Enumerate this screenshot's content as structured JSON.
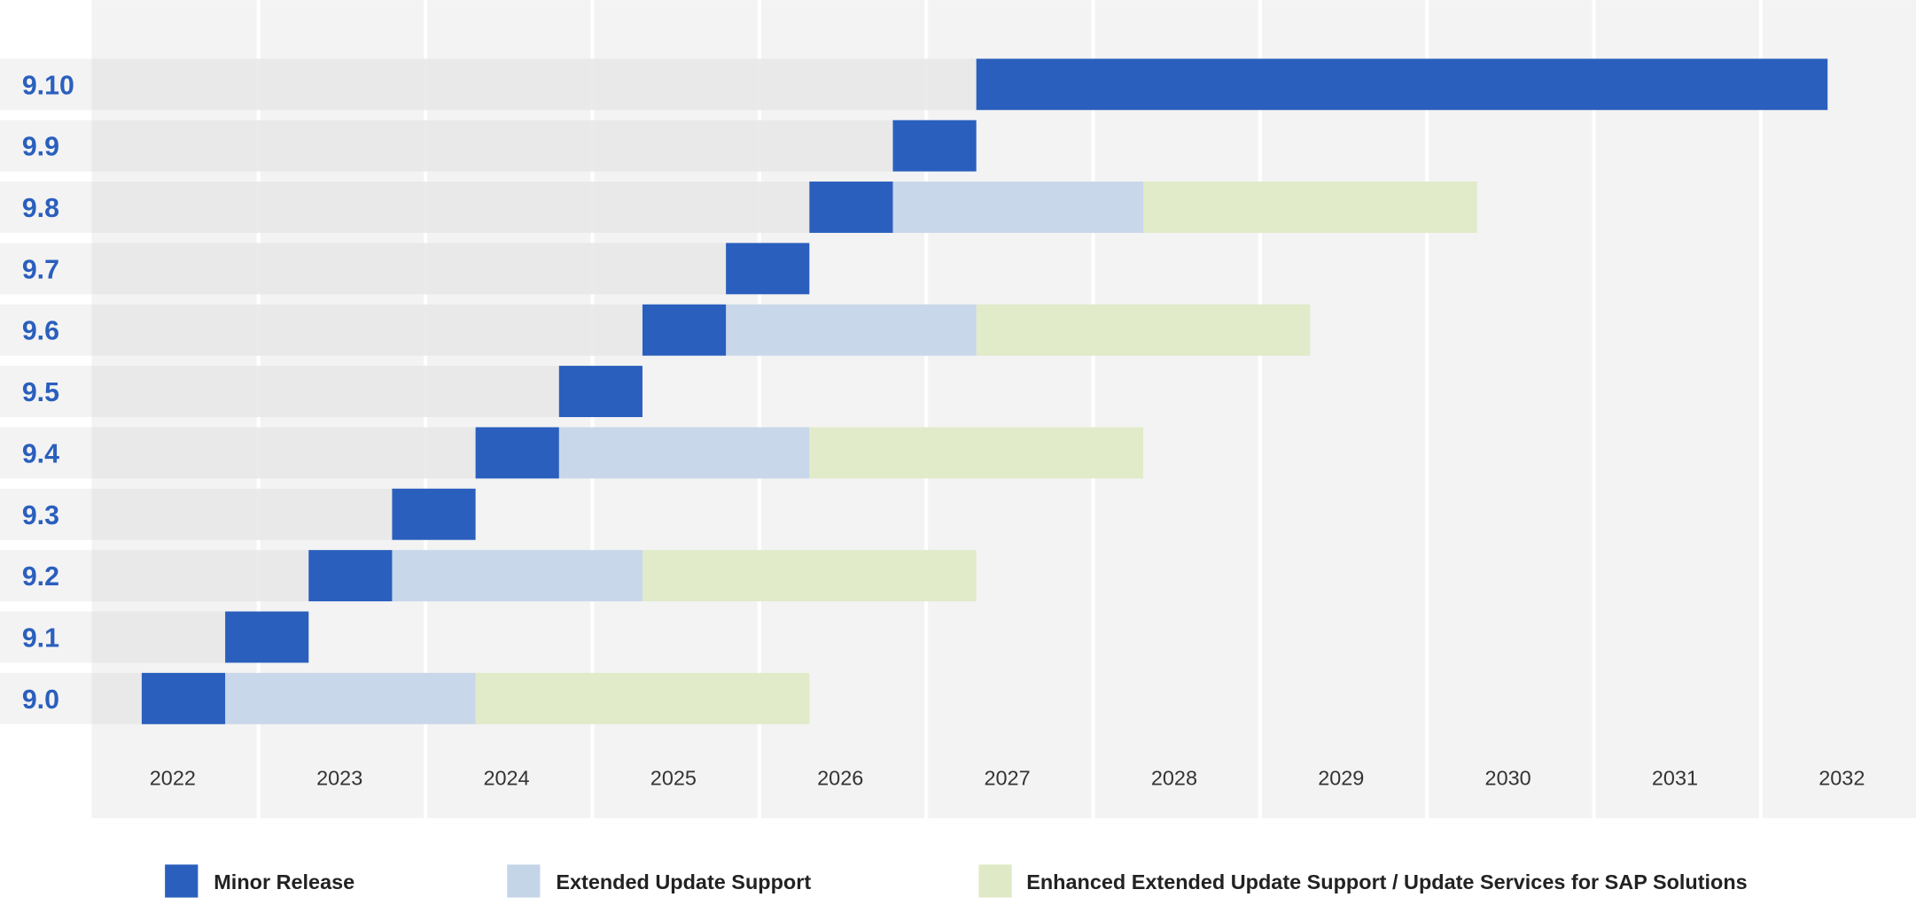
{
  "chart_data": {
    "type": "gantt",
    "title": "",
    "x_ticks": [
      "2022",
      "2023",
      "2024",
      "2025",
      "2026",
      "2027",
      "2028",
      "2029",
      "2030",
      "2031",
      "2032"
    ],
    "x_range": [
      2022,
      2033
    ],
    "grid": true,
    "legend_placement": "bottom",
    "colors": {
      "minor_release": "#2a5fbd",
      "extended_update_support": "#c5d5e8",
      "enhanced_extended_update_support": "#dfe9c6",
      "plot_background": "#f3f3f3",
      "row_background": "#e8e8e8",
      "row_label": "#2a5fbd"
    },
    "legend": [
      {
        "key": "minor_release",
        "label": "Minor Release"
      },
      {
        "key": "extended_update_support",
        "label": "Extended Update Support"
      },
      {
        "key": "enhanced_extended_update_support",
        "label": "Enhanced Extended Update Support / Update Services for SAP Solutions"
      }
    ],
    "releases": [
      {
        "version": "9.10",
        "minor_release": [
          2027.3,
          2032.4
        ]
      },
      {
        "version": "9.9",
        "minor_release": [
          2026.8,
          2027.3
        ]
      },
      {
        "version": "9.8",
        "minor_release": [
          2026.3,
          2026.8
        ],
        "extended_update_support": [
          2026.8,
          2028.3
        ],
        "enhanced_extended_update_support": [
          2028.3,
          2030.3
        ]
      },
      {
        "version": "9.7",
        "minor_release": [
          2025.8,
          2026.3
        ]
      },
      {
        "version": "9.6",
        "minor_release": [
          2025.3,
          2025.8
        ],
        "extended_update_support": [
          2025.8,
          2027.3
        ],
        "enhanced_extended_update_support": [
          2027.3,
          2029.3
        ]
      },
      {
        "version": "9.5",
        "minor_release": [
          2024.8,
          2025.3
        ]
      },
      {
        "version": "9.4",
        "minor_release": [
          2024.3,
          2024.8
        ],
        "extended_update_support": [
          2024.8,
          2026.3
        ],
        "enhanced_extended_update_support": [
          2026.3,
          2028.3
        ]
      },
      {
        "version": "9.3",
        "minor_release": [
          2023.8,
          2024.3
        ]
      },
      {
        "version": "9.2",
        "minor_release": [
          2023.3,
          2023.8
        ],
        "extended_update_support": [
          2023.8,
          2025.3
        ],
        "enhanced_extended_update_support": [
          2025.3,
          2027.3
        ]
      },
      {
        "version": "9.1",
        "minor_release": [
          2022.8,
          2023.3
        ]
      },
      {
        "version": "9.0",
        "minor_release": [
          2022.3,
          2022.8
        ],
        "extended_update_support": [
          2022.8,
          2024.3
        ],
        "enhanced_extended_update_support": [
          2024.3,
          2026.3
        ]
      }
    ]
  }
}
